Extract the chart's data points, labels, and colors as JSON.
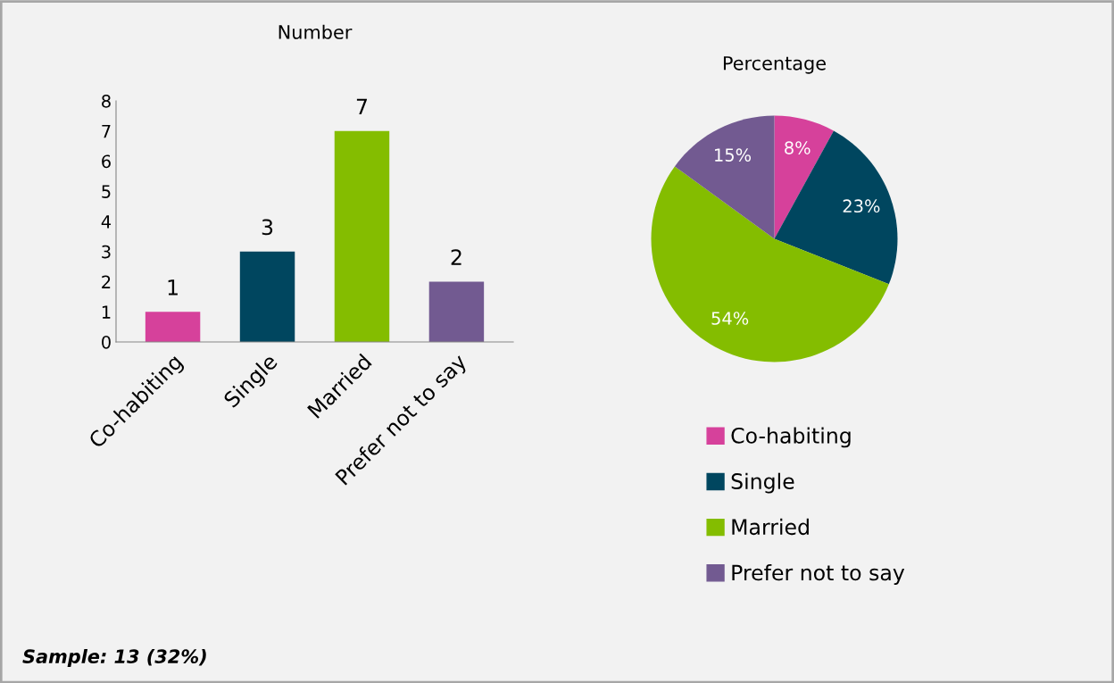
{
  "chart_data": [
    {
      "type": "bar",
      "title": "Number",
      "categories": [
        "Co-habiting",
        "Single",
        "Married",
        "Prefer not to say"
      ],
      "values": [
        1,
        3,
        7,
        2
      ],
      "colors": [
        "#d6419b",
        "#00465f",
        "#84bd00",
        "#725a91"
      ],
      "ylim": [
        0,
        8
      ],
      "yticks": [
        0,
        1,
        2,
        3,
        4,
        5,
        6,
        7,
        8
      ],
      "grid": false,
      "data_labels": true,
      "annotations": [
        "Sample: 13 (32%)"
      ]
    },
    {
      "type": "pie",
      "title": "Percentage",
      "categories": [
        "Co-habiting",
        "Single",
        "Married",
        "Prefer not to say"
      ],
      "values": [
        8,
        23,
        54,
        15
      ],
      "colors": [
        "#d6419b",
        "#00465f",
        "#84bd00",
        "#725a91"
      ],
      "value_labels": [
        "8%",
        "23%",
        "54%",
        "15%"
      ],
      "legend": "bottom"
    }
  ]
}
